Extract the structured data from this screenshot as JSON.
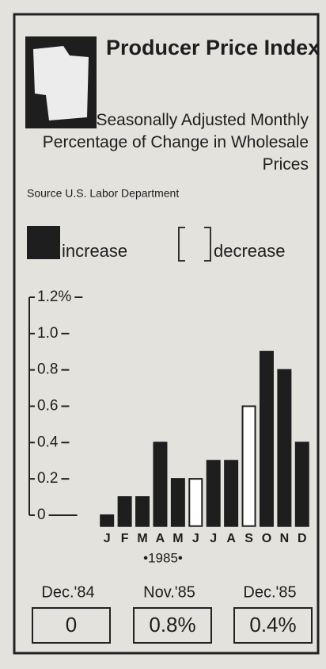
{
  "chart_data": {
    "type": "bar",
    "title": "Producer Price Index",
    "subtitle": "Seasonally Adjusted Monthly Percentage of Change in Wholesale Prices",
    "source": "Source U.S. Labor Department",
    "xlabel": "•1985•",
    "categories": [
      "J",
      "F",
      "M",
      "A",
      "M",
      "J",
      "J",
      "A",
      "S",
      "O",
      "N",
      "D"
    ],
    "series": [
      {
        "name": "increase",
        "color": "#1e1e1e",
        "values": [
          0.0,
          0.1,
          0.1,
          0.4,
          0.2,
          null,
          0.3,
          0.3,
          null,
          0.9,
          0.8,
          0.4
        ]
      },
      {
        "name": "decrease",
        "color": "#ffffff",
        "values": [
          null,
          null,
          null,
          null,
          null,
          0.2,
          null,
          null,
          0.6,
          null,
          null,
          null
        ]
      }
    ],
    "ylim": [
      -0.06,
      1.2
    ],
    "yticks": [
      0,
      0.2,
      0.4,
      0.6,
      0.8,
      {
        "value": 1,
        "label": "1.0"
      },
      {
        "value": 1.2,
        "label": "1.2%"
      }
    ],
    "summary": [
      {
        "period": "Dec.'84",
        "value": "0"
      },
      {
        "period": "Nov.'85",
        "value": "0.8%"
      },
      {
        "period": "Dec.'85",
        "value": "0.4%"
      }
    ]
  }
}
